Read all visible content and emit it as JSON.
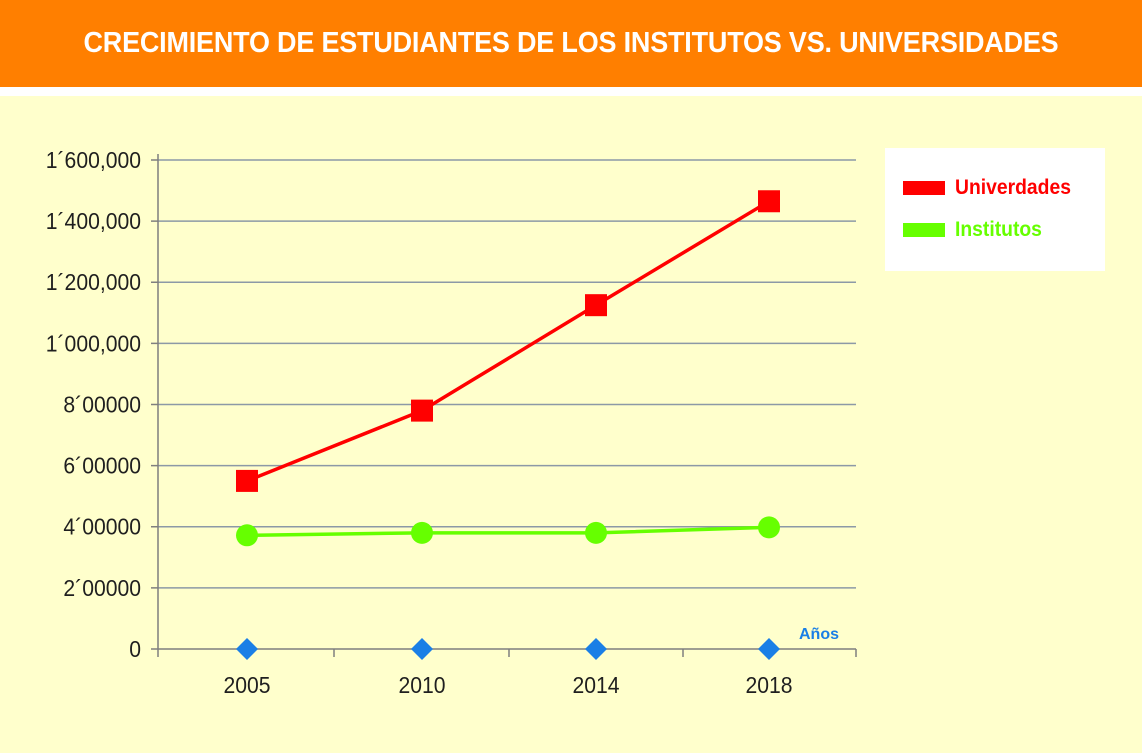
{
  "header": {
    "title": "CRECIMIENTO DE ESTUDIANTES DE LOS INSTITUTOS VS. UNIVERSIDADES"
  },
  "colors": {
    "banner": "#ff7f00",
    "plot_background": "#ffffcc",
    "universidades": "#ff0000",
    "institutos": "#66ff00",
    "baseline_markers": "#1a7fe6",
    "axis_title": "#1a7fe6"
  },
  "legend": {
    "items": [
      {
        "label": "Univerdades",
        "color": "#ff0000"
      },
      {
        "label": "Institutos",
        "color": "#66ff00"
      }
    ]
  },
  "chart_data": {
    "type": "line",
    "x": [
      "2005",
      "2010",
      "2014",
      "2018"
    ],
    "xlabel": "Años",
    "ylabel": "",
    "ylim": [
      0,
      1600000
    ],
    "yticks": [
      0,
      200000,
      400000,
      600000,
      800000,
      1000000,
      1200000,
      1400000,
      1600000
    ],
    "ytick_labels": [
      "0",
      "2´00000",
      "4´00000",
      "6´00000",
      "8´00000",
      "1´000,000",
      "1´200,000",
      "1´400,000",
      "1´600,000"
    ],
    "grid": true,
    "legend_position": "top-right",
    "series": [
      {
        "name": "Univerdades",
        "marker": "square",
        "color": "#ff0000",
        "values": [
          550000,
          780000,
          1125000,
          1465000
        ]
      },
      {
        "name": "Institutos",
        "marker": "circle",
        "color": "#66ff00",
        "values": [
          372000,
          380000,
          380000,
          398000
        ]
      },
      {
        "marker": "diamond",
        "color": "#1a7fe6",
        "values": [
          0,
          0,
          0,
          0
        ]
      }
    ]
  }
}
